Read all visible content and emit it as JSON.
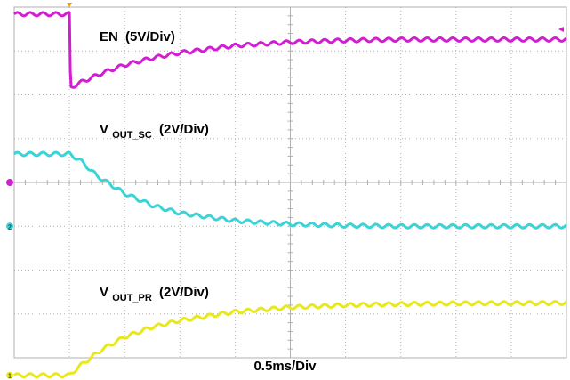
{
  "chart_data": {
    "type": "line",
    "title": "",
    "xlabel": "0.5ms/Div",
    "ylabel": "",
    "grid": true,
    "x_divisions": 10,
    "y_divisions": 8,
    "x_unit": "ms",
    "ms_per_div": 0.5,
    "xlim": [
      0,
      5
    ],
    "colors": {
      "background": "#ffffff",
      "grid": "#b0b0b0",
      "en": "#d21ed2",
      "vout_sc": "#3ad4d8",
      "vout_pr": "#e8e81c",
      "trigger": "#e8a000"
    },
    "series": [
      {
        "key": "en",
        "label_main": "EN",
        "label_sub": "",
        "label_scale": "(5V/Div)",
        "volts_per_div": 5,
        "color": "#d21ed2",
        "marker": "",
        "x_ms": [
          0,
          0.5,
          0.51,
          0.6,
          0.8,
          1.0,
          1.25,
          1.5,
          2.0,
          2.5,
          3.0,
          3.5,
          4.0,
          4.5,
          5.0
        ],
        "y_v": [
          19.2,
          19.2,
          10.8,
          11.4,
          12.5,
          13.4,
          14.2,
          14.8,
          15.6,
          16.0,
          16.2,
          16.3,
          16.3,
          16.3,
          16.3
        ]
      },
      {
        "key": "vout_sc",
        "label_main": "V",
        "label_sub": "OUT_SC",
        "label_scale": "(2V/Div)",
        "volts_per_div": 2,
        "color": "#3ad4d8",
        "marker": "2",
        "x_ms": [
          0,
          0.5,
          0.6,
          0.75,
          1.0,
          1.25,
          1.5,
          2.0,
          2.5,
          3.0,
          3.5,
          4.0,
          5.0
        ],
        "y_v": [
          3.3,
          3.3,
          3.0,
          2.3,
          1.5,
          0.95,
          0.6,
          0.25,
          0.1,
          0.03,
          0.0,
          0.0,
          0.0
        ]
      },
      {
        "key": "vout_pr",
        "label_main": "V",
        "label_sub": "OUT_PR",
        "label_scale": "(2V/Div)",
        "volts_per_div": 2,
        "color": "#e8e81c",
        "marker": "1",
        "x_ms": [
          0,
          0.5,
          0.6,
          0.8,
          1.0,
          1.25,
          1.5,
          2.0,
          2.5,
          3.0,
          3.5,
          4.0,
          4.5,
          5.0
        ],
        "y_v": [
          0,
          0,
          0.45,
          1.2,
          1.75,
          2.2,
          2.5,
          2.9,
          3.1,
          3.2,
          3.25,
          3.28,
          3.29,
          3.3
        ]
      }
    ]
  }
}
